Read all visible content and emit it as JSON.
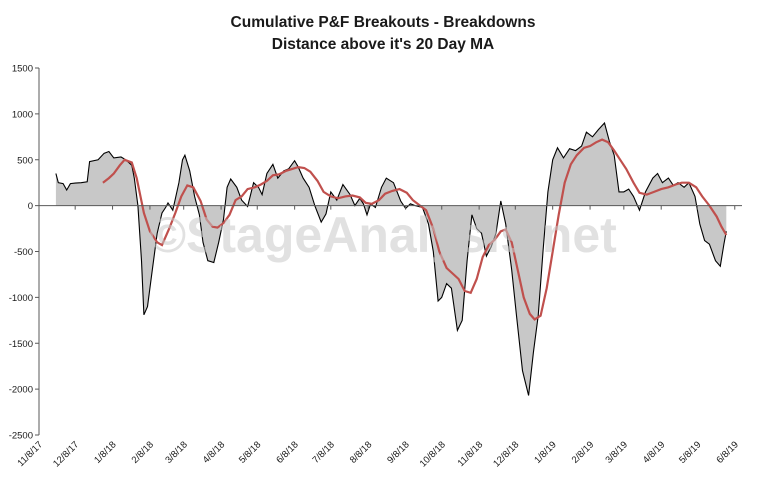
{
  "colors": {
    "background": "#ffffff",
    "area_fill": "#c8c8c8",
    "series_line": "#000000",
    "ma_line": "#c0504d",
    "axis": "#595959",
    "watermark": "#c9c9c9"
  },
  "chart_data": {
    "type": "area",
    "title": "Cumulative P&F Breakouts - Breakdowns",
    "subtitle": "Distance above it's 20 Day MA",
    "watermark": "©StageAnalysis.net",
    "ylim": [
      -2500,
      1500
    ],
    "xlim": [
      "2017-11-08",
      "2019-06-14"
    ],
    "yticks": [
      1500,
      1000,
      500,
      0,
      -500,
      -1000,
      -1500,
      -2000,
      -2500
    ],
    "xticks": [
      "11/8/17",
      "12/8/17",
      "1/8/18",
      "2/8/18",
      "3/8/18",
      "4/8/18",
      "5/8/18",
      "6/8/18",
      "7/8/18",
      "8/8/18",
      "9/8/18",
      "10/8/18",
      "11/8/18",
      "12/8/18",
      "1/8/19",
      "2/8/19",
      "3/8/19",
      "4/8/19",
      "5/8/19",
      "6/8/19"
    ],
    "grid": false,
    "legend": "none",
    "series": [
      {
        "values": [
          [
            "2017-11-22",
            350
          ],
          [
            "2017-11-24",
            250
          ],
          [
            "2017-11-28",
            240
          ],
          [
            "2017-12-01",
            170
          ],
          [
            "2017-12-04",
            240
          ],
          [
            "2017-12-08",
            245
          ],
          [
            "2017-12-13",
            250
          ],
          [
            "2017-12-18",
            260
          ],
          [
            "2017-12-20",
            480
          ],
          [
            "2017-12-27",
            500
          ],
          [
            "2018-01-01",
            570
          ],
          [
            "2018-01-05",
            590
          ],
          [
            "2018-01-09",
            520
          ],
          [
            "2018-01-15",
            530
          ],
          [
            "2018-01-19",
            500
          ],
          [
            "2018-01-24",
            440
          ],
          [
            "2018-01-26",
            300
          ],
          [
            "2018-01-29",
            0
          ],
          [
            "2018-02-01",
            -600
          ],
          [
            "2018-02-03",
            -1190
          ],
          [
            "2018-02-06",
            -1100
          ],
          [
            "2018-02-10",
            -700
          ],
          [
            "2018-02-14",
            -300
          ],
          [
            "2018-02-18",
            -80
          ],
          [
            "2018-02-21",
            -20
          ],
          [
            "2018-02-23",
            30
          ],
          [
            "2018-02-27",
            -50
          ],
          [
            "2018-03-04",
            250
          ],
          [
            "2018-03-07",
            500
          ],
          [
            "2018-03-09",
            550
          ],
          [
            "2018-03-13",
            380
          ],
          [
            "2018-03-17",
            100
          ],
          [
            "2018-03-21",
            -100
          ],
          [
            "2018-03-24",
            -400
          ],
          [
            "2018-03-28",
            -600
          ],
          [
            "2018-04-02",
            -620
          ],
          [
            "2018-04-06",
            -400
          ],
          [
            "2018-04-10",
            -150
          ],
          [
            "2018-04-13",
            200
          ],
          [
            "2018-04-16",
            290
          ],
          [
            "2018-04-21",
            200
          ],
          [
            "2018-04-25",
            60
          ],
          [
            "2018-04-30",
            -10
          ],
          [
            "2018-05-05",
            250
          ],
          [
            "2018-05-09",
            200
          ],
          [
            "2018-05-12",
            120
          ],
          [
            "2018-05-16",
            350
          ],
          [
            "2018-05-21",
            450
          ],
          [
            "2018-05-25",
            300
          ],
          [
            "2018-05-30",
            380
          ],
          [
            "2018-06-03",
            400
          ],
          [
            "2018-06-08",
            490
          ],
          [
            "2018-06-11",
            420
          ],
          [
            "2018-06-15",
            300
          ],
          [
            "2018-06-20",
            200
          ],
          [
            "2018-06-25",
            -10
          ],
          [
            "2018-06-30",
            -180
          ],
          [
            "2018-07-04",
            -90
          ],
          [
            "2018-07-08",
            150
          ],
          [
            "2018-07-13",
            60
          ],
          [
            "2018-07-18",
            230
          ],
          [
            "2018-07-24",
            120
          ],
          [
            "2018-07-28",
            0
          ],
          [
            "2018-08-01",
            80
          ],
          [
            "2018-08-04",
            20
          ],
          [
            "2018-08-07",
            -100
          ],
          [
            "2018-08-10",
            20
          ],
          [
            "2018-08-14",
            -20
          ],
          [
            "2018-08-19",
            200
          ],
          [
            "2018-08-23",
            300
          ],
          [
            "2018-08-29",
            250
          ],
          [
            "2018-09-04",
            50
          ],
          [
            "2018-09-08",
            -30
          ],
          [
            "2018-09-12",
            20
          ],
          [
            "2018-09-16",
            0
          ],
          [
            "2018-09-22",
            -20
          ],
          [
            "2018-09-27",
            -200
          ],
          [
            "2018-10-01",
            -500
          ],
          [
            "2018-10-05",
            -1040
          ],
          [
            "2018-10-08",
            -1000
          ],
          [
            "2018-10-12",
            -850
          ],
          [
            "2018-10-16",
            -900
          ],
          [
            "2018-10-21",
            -1360
          ],
          [
            "2018-10-25",
            -1250
          ],
          [
            "2018-10-29",
            -600
          ],
          [
            "2018-11-02",
            -100
          ],
          [
            "2018-11-06",
            -250
          ],
          [
            "2018-11-10",
            -300
          ],
          [
            "2018-11-14",
            -550
          ],
          [
            "2018-11-18",
            -450
          ],
          [
            "2018-11-22",
            -300
          ],
          [
            "2018-11-26",
            50
          ],
          [
            "2018-11-30",
            -200
          ],
          [
            "2018-12-05",
            -700
          ],
          [
            "2018-12-09",
            -1200
          ],
          [
            "2018-12-14",
            -1800
          ],
          [
            "2018-12-19",
            -2070
          ],
          [
            "2018-12-23",
            -1600
          ],
          [
            "2018-12-27",
            -1200
          ],
          [
            "2018-12-31",
            -500
          ],
          [
            "2019-01-04",
            150
          ],
          [
            "2019-01-08",
            500
          ],
          [
            "2019-01-12",
            630
          ],
          [
            "2019-01-17",
            520
          ],
          [
            "2019-01-22",
            620
          ],
          [
            "2019-01-27",
            600
          ],
          [
            "2019-02-01",
            650
          ],
          [
            "2019-02-05",
            800
          ],
          [
            "2019-02-10",
            750
          ],
          [
            "2019-02-15",
            830
          ],
          [
            "2019-02-20",
            900
          ],
          [
            "2019-02-24",
            700
          ],
          [
            "2019-02-28",
            550
          ],
          [
            "2019-03-04",
            150
          ],
          [
            "2019-03-08",
            150
          ],
          [
            "2019-03-12",
            180
          ],
          [
            "2019-03-16",
            100
          ],
          [
            "2019-03-21",
            -50
          ],
          [
            "2019-03-26",
            150
          ],
          [
            "2019-04-01",
            300
          ],
          [
            "2019-04-05",
            350
          ],
          [
            "2019-04-09",
            250
          ],
          [
            "2019-04-14",
            300
          ],
          [
            "2019-04-18",
            220
          ],
          [
            "2019-04-22",
            250
          ],
          [
            "2019-04-27",
            200
          ],
          [
            "2019-05-01",
            250
          ],
          [
            "2019-05-06",
            100
          ],
          [
            "2019-05-10",
            -200
          ],
          [
            "2019-05-14",
            -380
          ],
          [
            "2019-05-18",
            -420
          ],
          [
            "2019-05-23",
            -600
          ],
          [
            "2019-05-27",
            -660
          ],
          [
            "2019-05-30",
            -420
          ],
          [
            "2019-06-01",
            -280
          ]
        ]
      },
      {
        "values": [
          [
            "2017-12-31",
            250
          ],
          [
            "2018-01-05",
            300
          ],
          [
            "2018-01-09",
            350
          ],
          [
            "2018-01-14",
            440
          ],
          [
            "2018-01-18",
            500
          ],
          [
            "2018-01-24",
            470
          ],
          [
            "2018-01-28",
            300
          ],
          [
            "2018-02-03",
            -80
          ],
          [
            "2018-02-08",
            -280
          ],
          [
            "2018-02-14",
            -400
          ],
          [
            "2018-02-18",
            -430
          ],
          [
            "2018-02-24",
            -250
          ],
          [
            "2018-03-01",
            -80
          ],
          [
            "2018-03-06",
            100
          ],
          [
            "2018-03-11",
            220
          ],
          [
            "2018-03-16",
            200
          ],
          [
            "2018-03-22",
            50
          ],
          [
            "2018-03-27",
            -150
          ],
          [
            "2018-04-01",
            -230
          ],
          [
            "2018-04-05",
            -240
          ],
          [
            "2018-04-10",
            -190
          ],
          [
            "2018-04-15",
            -100
          ],
          [
            "2018-04-20",
            60
          ],
          [
            "2018-04-25",
            100
          ],
          [
            "2018-04-30",
            180
          ],
          [
            "2018-05-06",
            200
          ],
          [
            "2018-05-11",
            230
          ],
          [
            "2018-05-16",
            270
          ],
          [
            "2018-05-21",
            330
          ],
          [
            "2018-05-26",
            340
          ],
          [
            "2018-06-01",
            380
          ],
          [
            "2018-06-06",
            400
          ],
          [
            "2018-06-11",
            420
          ],
          [
            "2018-06-16",
            410
          ],
          [
            "2018-06-21",
            370
          ],
          [
            "2018-06-27",
            270
          ],
          [
            "2018-07-02",
            150
          ],
          [
            "2018-07-08",
            100
          ],
          [
            "2018-07-14",
            80
          ],
          [
            "2018-07-20",
            100
          ],
          [
            "2018-07-26",
            110
          ],
          [
            "2018-08-01",
            90
          ],
          [
            "2018-08-06",
            30
          ],
          [
            "2018-08-11",
            20
          ],
          [
            "2018-08-17",
            60
          ],
          [
            "2018-08-22",
            130
          ],
          [
            "2018-08-28",
            160
          ],
          [
            "2018-09-03",
            180
          ],
          [
            "2018-09-09",
            140
          ],
          [
            "2018-09-14",
            60
          ],
          [
            "2018-09-20",
            0
          ],
          [
            "2018-09-25",
            -50
          ],
          [
            "2018-10-01",
            -250
          ],
          [
            "2018-10-06",
            -500
          ],
          [
            "2018-10-12",
            -680
          ],
          [
            "2018-10-17",
            -740
          ],
          [
            "2018-10-22",
            -800
          ],
          [
            "2018-10-27",
            -930
          ],
          [
            "2018-11-01",
            -950
          ],
          [
            "2018-11-06",
            -800
          ],
          [
            "2018-11-11",
            -560
          ],
          [
            "2018-11-16",
            -430
          ],
          [
            "2018-11-21",
            -370
          ],
          [
            "2018-11-26",
            -280
          ],
          [
            "2018-11-30",
            -260
          ],
          [
            "2018-12-05",
            -400
          ],
          [
            "2018-12-10",
            -700
          ],
          [
            "2018-12-15",
            -1000
          ],
          [
            "2018-12-20",
            -1180
          ],
          [
            "2018-12-24",
            -1240
          ],
          [
            "2018-12-29",
            -1200
          ],
          [
            "2019-01-03",
            -900
          ],
          [
            "2019-01-08",
            -500
          ],
          [
            "2019-01-13",
            -100
          ],
          [
            "2019-01-18",
            250
          ],
          [
            "2019-01-23",
            450
          ],
          [
            "2019-01-28",
            550
          ],
          [
            "2019-02-03",
            630
          ],
          [
            "2019-02-08",
            650
          ],
          [
            "2019-02-13",
            690
          ],
          [
            "2019-02-18",
            720
          ],
          [
            "2019-02-23",
            690
          ],
          [
            "2019-02-28",
            600
          ],
          [
            "2019-03-05",
            500
          ],
          [
            "2019-03-10",
            400
          ],
          [
            "2019-03-16",
            250
          ],
          [
            "2019-03-21",
            140
          ],
          [
            "2019-03-27",
            120
          ],
          [
            "2019-04-02",
            150
          ],
          [
            "2019-04-08",
            180
          ],
          [
            "2019-04-14",
            200
          ],
          [
            "2019-04-20",
            230
          ],
          [
            "2019-04-25",
            250
          ],
          [
            "2019-05-01",
            250
          ],
          [
            "2019-05-07",
            200
          ],
          [
            "2019-05-12",
            100
          ],
          [
            "2019-05-18",
            0
          ],
          [
            "2019-05-24",
            -120
          ],
          [
            "2019-05-28",
            -230
          ],
          [
            "2019-06-01",
            -320
          ]
        ]
      }
    ]
  }
}
